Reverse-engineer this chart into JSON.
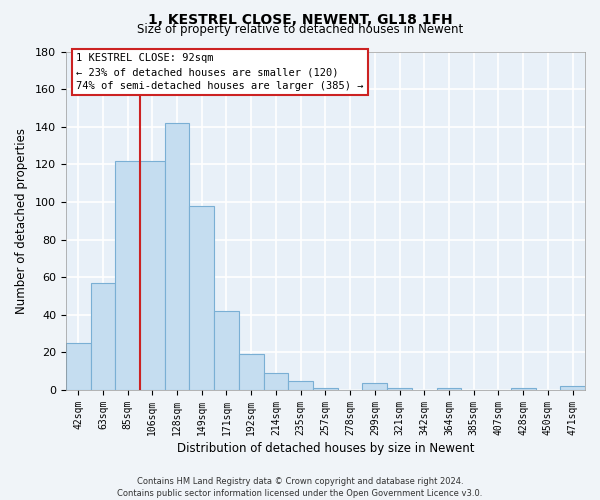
{
  "title": "1, KESTREL CLOSE, NEWENT, GL18 1FH",
  "subtitle": "Size of property relative to detached houses in Newent",
  "xlabel": "Distribution of detached houses by size in Newent",
  "ylabel": "Number of detached properties",
  "bar_color": "#c5ddf0",
  "bar_edge_color": "#7aafd4",
  "background_color": "#f0f4f8",
  "plot_bg_color": "#e8f0f8",
  "grid_color": "#ffffff",
  "tick_labels": [
    "42sqm",
    "63sqm",
    "85sqm",
    "106sqm",
    "128sqm",
    "149sqm",
    "171sqm",
    "192sqm",
    "214sqm",
    "235sqm",
    "257sqm",
    "278sqm",
    "299sqm",
    "321sqm",
    "342sqm",
    "364sqm",
    "385sqm",
    "407sqm",
    "428sqm",
    "450sqm",
    "471sqm"
  ],
  "bar_values": [
    25,
    57,
    122,
    122,
    142,
    98,
    42,
    19,
    9,
    5,
    1,
    0,
    4,
    1,
    0,
    1,
    0,
    0,
    1,
    0,
    2
  ],
  "ylim": [
    0,
    180
  ],
  "yticks": [
    0,
    20,
    40,
    60,
    80,
    100,
    120,
    140,
    160,
    180
  ],
  "red_line_x": 2.5,
  "property_line_label": "1 KESTREL CLOSE: 92sqm",
  "annotation_line1": "← 23% of detached houses are smaller (120)",
  "annotation_line2": "74% of semi-detached houses are larger (385) →",
  "footer_line1": "Contains HM Land Registry data © Crown copyright and database right 2024.",
  "footer_line2": "Contains public sector information licensed under the Open Government Licence v3.0."
}
